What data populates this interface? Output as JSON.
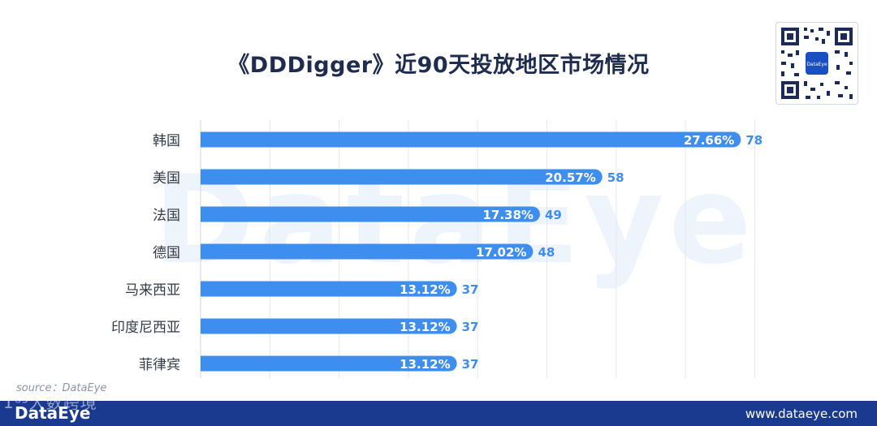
{
  "header": {
    "title": "《DDDigger》近90天投放地区市场情况"
  },
  "watermark": "DataEye",
  "qr_label": "DataEye",
  "source": "source：DataEye",
  "footer": {
    "brand": "DataEye",
    "url": "www.dataeye.com",
    "overlay_watermark": "1⁶³大数跨境"
  },
  "colors": {
    "bar": "#3e8ef0",
    "label_text": "#3e8ef0",
    "title": "#1d2c4f",
    "footer_bg": "#1a3a8f"
  },
  "chart_data": {
    "type": "bar",
    "orientation": "horizontal",
    "categories": [
      "韩国",
      "美国",
      "法国",
      "德国",
      "马来西亚",
      "印度尼西亚",
      "菲律宾"
    ],
    "series": [
      {
        "values": [
          78,
          58,
          49,
          48,
          37,
          37,
          37
        ],
        "percent_labels": [
          "27.66%",
          "20.57%",
          "17.38%",
          "17.02%",
          "13.12%",
          "13.12%",
          "13.12%"
        ]
      }
    ],
    "xlim": [
      0,
      100
    ],
    "grid": true
  }
}
